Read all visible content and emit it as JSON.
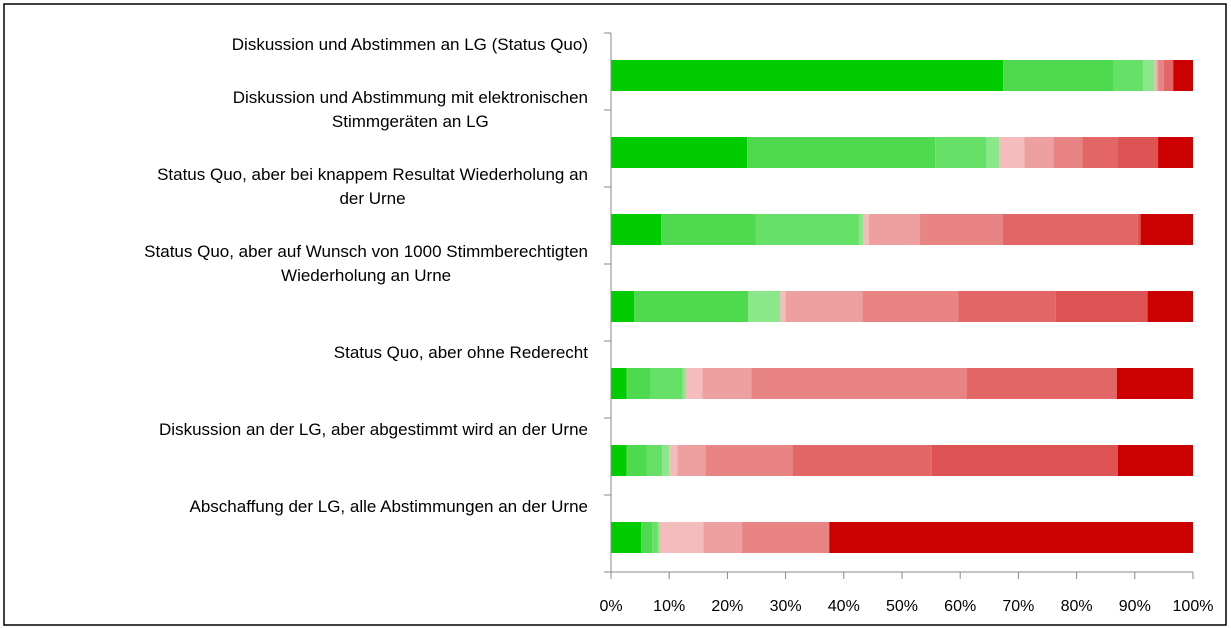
{
  "chart_data": {
    "type": "stacked-bar-horizontal",
    "categories": [
      "Diskussion und Abstimmen an LG (Status Quo)",
      "Diskussion und Abstimmung mit elektronischen\nStimmgeräten an LG",
      "Status Quo, aber bei knappem Resultat Wiederholung an\nder Urne",
      "Status Quo, aber auf Wunsch von 1000 Stimmberechtigten\nWiederholung an Urne",
      "Status Quo, aber ohne Rederecht",
      "Diskussion an der LG, aber abgestimmt wird an der Urne",
      "Abschaffung der LG, alle Abstimmungen an der Urne"
    ],
    "series": [
      {
        "color": "#00cc00",
        "values": [
          67.4,
          23.4,
          8.6,
          4,
          2.7,
          2.7,
          5.2
        ]
      },
      {
        "color": "#4fd94f",
        "values": [
          19.0,
          32.3,
          16.3,
          19.6,
          4.1,
          3.4,
          1.9
        ]
      },
      {
        "color": "#66e066",
        "values": [
          5.0,
          8.8,
          17.7,
          0,
          5.5,
          2.7,
          0.9
        ]
      },
      {
        "color": "#8ae88a",
        "values": [
          2.0,
          2.2,
          0.7,
          5.5,
          0.5,
          1.2,
          0.4
        ]
      },
      {
        "color": "#f4bcbc",
        "values": [
          0.3,
          4.3,
          1.0,
          0.9,
          2.9,
          1.4,
          7.5
        ]
      },
      {
        "color": "#eea0a0",
        "values": [
          0.3,
          5.0,
          8.8,
          13.2,
          8.4,
          4.8,
          6.6
        ]
      },
      {
        "color": "#e88484",
        "values": [
          1.0,
          5.0,
          14.2,
          16.5,
          37,
          15,
          15
        ]
      },
      {
        "color": "#e26666",
        "values": [
          1.6,
          6.0,
          23.2,
          16.7,
          25.8,
          23.9,
          0
        ]
      },
      {
        "color": "#dd5252",
        "values": [
          0,
          7.0,
          0.5,
          15.8,
          0,
          32,
          0
        ]
      },
      {
        "color": "#cc0000",
        "values": [
          3.4,
          6.0,
          9.0,
          7.8,
          13.1,
          12.9,
          62.5
        ]
      }
    ],
    "xlim": [
      0,
      100
    ],
    "xticks": [
      {
        "value": 0,
        "label": "0%"
      },
      {
        "value": 10,
        "label": "10%"
      },
      {
        "value": 20,
        "label": "20%"
      },
      {
        "value": 30,
        "label": "30%"
      },
      {
        "value": 40,
        "label": "40%"
      },
      {
        "value": 50,
        "label": "50%"
      },
      {
        "value": 60,
        "label": "60%"
      },
      {
        "value": 70,
        "label": "70%"
      },
      {
        "value": 80,
        "label": "80%"
      },
      {
        "value": 90,
        "label": "90%"
      },
      {
        "value": 100,
        "label": "100%"
      }
    ]
  }
}
